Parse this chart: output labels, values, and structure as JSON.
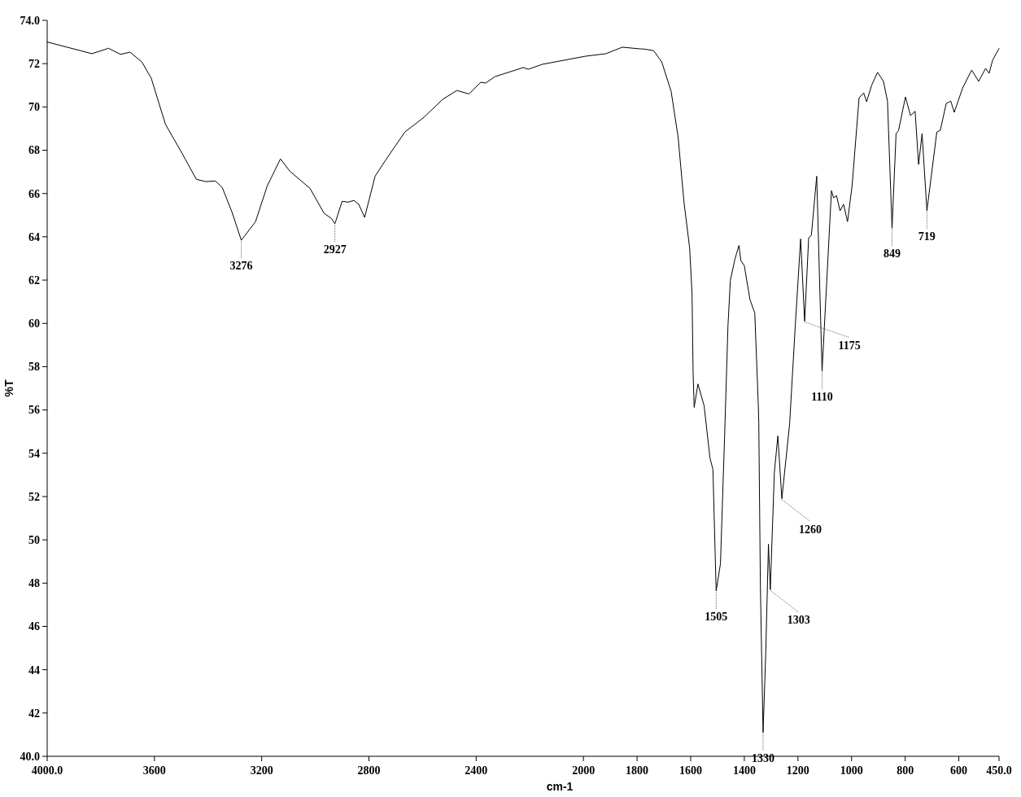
{
  "chart_data": {
    "type": "line",
    "xlabel": "cm-1",
    "ylabel": "%T",
    "xlim": [
      4000,
      450
    ],
    "ylim": [
      40,
      74
    ],
    "xticks": [
      {
        "value": 4000,
        "label": "4000.0"
      },
      3600,
      3200,
      2800,
      2400,
      2000,
      1800,
      1600,
      1400,
      1200,
      1000,
      800,
      600,
      {
        "value": 450,
        "label": "450.0"
      }
    ],
    "yticks": [
      {
        "value": 40,
        "label": "40.0"
      },
      42,
      44,
      46,
      48,
      50,
      52,
      54,
      56,
      58,
      60,
      62,
      64,
      66,
      68,
      70,
      72,
      {
        "value": 74,
        "label": "74.0"
      }
    ],
    "grid": false,
    "marker": "none",
    "line_style": "solid",
    "series": [
      {
        "color": "#000000",
        "x": [
          4000,
          3833,
          3771,
          3727,
          3691,
          3647,
          3612,
          3559,
          3497,
          3444,
          3409,
          3373,
          3347,
          3311,
          3276,
          3223,
          3179,
          3130,
          3095,
          3020,
          2967,
          2940,
          2927,
          2900,
          2878,
          2856,
          2838,
          2816,
          2777,
          2737,
          2666,
          2595,
          2525,
          2472,
          2427,
          2383,
          2365,
          2330,
          2224,
          2206,
          2153,
          1994,
          1916,
          1855,
          1786,
          1777,
          1738,
          1708,
          1673,
          1647,
          1625,
          1604,
          1595,
          1591,
          1587,
          1573,
          1550,
          1528,
          1517,
          1505,
          1489,
          1474,
          1461,
          1452,
          1435,
          1420,
          1413,
          1400,
          1379,
          1361,
          1348,
          1346,
          1340,
          1330,
          1320,
          1310,
          1303,
          1288,
          1275,
          1260,
          1231,
          1210,
          1190,
          1175,
          1160,
          1150,
          1130,
          1110,
          1075,
          1067,
          1056,
          1043,
          1030,
          1015,
          998,
          972,
          955,
          944,
          925,
          903,
          881,
          866,
          849,
          834,
          825,
          799,
          780,
          763,
          750,
          737,
          719,
          682,
          669,
          647,
          630,
          617,
          586,
          552,
          526,
          500,
          487,
          474,
          450
        ],
        "values": [
          73.0,
          72.46,
          72.71,
          72.43,
          72.53,
          72.08,
          71.33,
          69.2,
          67.86,
          66.66,
          66.55,
          66.58,
          66.28,
          65.15,
          63.84,
          64.7,
          66.36,
          67.6,
          67.03,
          66.24,
          65.08,
          64.85,
          64.6,
          65.64,
          65.6,
          65.68,
          65.5,
          64.9,
          66.8,
          67.56,
          68.84,
          69.52,
          70.35,
          70.76,
          70.6,
          71.14,
          71.1,
          71.4,
          71.82,
          71.74,
          71.97,
          72.34,
          72.46,
          72.76,
          72.68,
          72.68,
          72.6,
          72.08,
          70.72,
          68.62,
          65.6,
          63.5,
          61.4,
          57.77,
          56.12,
          57.2,
          56.2,
          53.78,
          53.25,
          47.64,
          48.89,
          54.6,
          59.88,
          61.99,
          62.97,
          63.6,
          62.9,
          62.67,
          61.1,
          60.48,
          56.3,
          55.4,
          47.8,
          41.1,
          44.8,
          49.8,
          47.7,
          53.1,
          54.8,
          51.9,
          55.36,
          59.88,
          63.9,
          60.1,
          63.95,
          64.06,
          66.8,
          57.8,
          66.13,
          65.8,
          65.9,
          65.2,
          65.5,
          64.7,
          66.36,
          70.42,
          70.65,
          70.24,
          71.0,
          71.6,
          71.18,
          70.27,
          64.4,
          68.77,
          68.9,
          70.46,
          69.6,
          69.8,
          67.34,
          68.77,
          65.2,
          68.84,
          68.92,
          70.16,
          70.27,
          69.75,
          70.87,
          71.7,
          71.18,
          71.78,
          71.55,
          72.16,
          72.7
        ]
      }
    ],
    "annotations": [
      {
        "text": "3276",
        "x": 3276,
        "y": 63.84
      },
      {
        "text": "2927",
        "x": 2927,
        "y": 64.6
      },
      {
        "text": "1505",
        "x": 1505,
        "y": 47.64
      },
      {
        "text": "1330",
        "x": 1330,
        "y": 41.1
      },
      {
        "text": "1303",
        "x": 1303,
        "y": 47.7
      },
      {
        "text": "1260",
        "x": 1260,
        "y": 51.9
      },
      {
        "text": "1175",
        "x": 1175,
        "y": 60.1
      },
      {
        "text": "1110",
        "x": 1110,
        "y": 57.8
      },
      {
        "text": "849",
        "x": 849,
        "y": 64.4
      },
      {
        "text": "719",
        "x": 719,
        "y": 65.2
      }
    ]
  }
}
